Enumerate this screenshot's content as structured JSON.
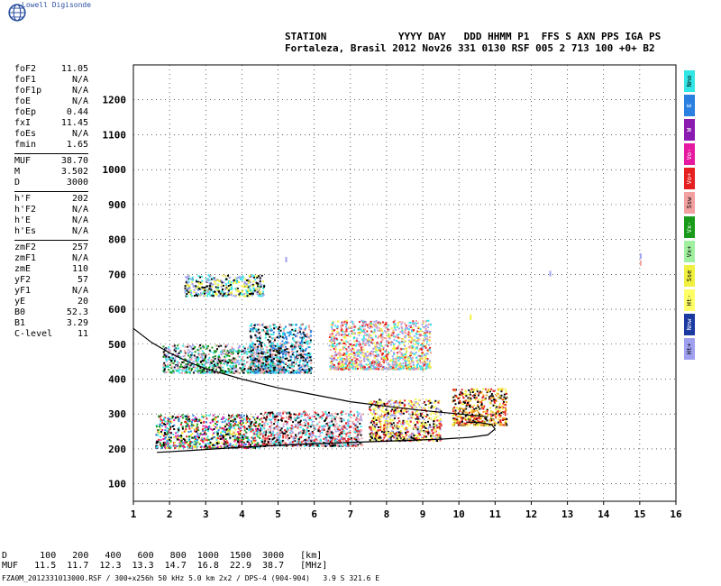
{
  "app": {
    "logo_text": "Lowell Digisonde",
    "logo_icon": "globe-icon"
  },
  "header": {
    "line1": "STATION            YYYY DAY   DDD HHMM P1  FFS S AXN PPS IGA PS",
    "line2": "Fortaleza, Brasil 2012 Nov26 331 0130 RSF 005 2 713 100 +0+ B2"
  },
  "params": [
    [
      {
        "name": "foF2",
        "value": "11.05"
      },
      {
        "name": "foF1",
        "value": "N/A"
      },
      {
        "name": "foF1p",
        "value": "N/A"
      },
      {
        "name": "foE",
        "value": "N/A"
      },
      {
        "name": "foEp",
        "value": "0.44"
      },
      {
        "name": "fxI",
        "value": "11.45"
      },
      {
        "name": "foEs",
        "value": "N/A"
      },
      {
        "name": "fmin",
        "value": "1.65"
      }
    ],
    [
      {
        "name": "MUF",
        "value": "38.70"
      },
      {
        "name": "M",
        "value": "3.502"
      },
      {
        "name": "D",
        "value": "3000"
      }
    ],
    [
      {
        "name": "h'F",
        "value": "202"
      },
      {
        "name": "h'F2",
        "value": "N/A"
      },
      {
        "name": "h'E",
        "value": "N/A"
      },
      {
        "name": "h'Es",
        "value": "N/A"
      }
    ],
    [
      {
        "name": "zmF2",
        "value": "257"
      },
      {
        "name": "zmF1",
        "value": "N/A"
      },
      {
        "name": "zmE",
        "value": "110"
      },
      {
        "name": "yF2",
        "value": "57"
      },
      {
        "name": "yF1",
        "value": "N/A"
      },
      {
        "name": "yE",
        "value": "20"
      },
      {
        "name": "B0",
        "value": "52.3"
      },
      {
        "name": "B1",
        "value": "3.29"
      },
      {
        "name": "C-level",
        "value": "11"
      }
    ]
  ],
  "legend": [
    {
      "label": "Nno",
      "color": "#33e6e6"
    },
    {
      "label": "E",
      "color": "#2a7fe0"
    },
    {
      "label": "W",
      "color": "#8a1ab0"
    },
    {
      "label": "Vo-",
      "color": "#e61aa0"
    },
    {
      "label": "Vo+",
      "color": "#e62020"
    },
    {
      "label": "Ssw",
      "color": "#f2a0a0"
    },
    {
      "label": "Vx-",
      "color": "#1a9a1a"
    },
    {
      "label": "Vx+",
      "color": "#a0f0a0"
    },
    {
      "label": "Sse",
      "color": "#f0f040"
    },
    {
      "label": "Ht-",
      "color": "#ffff66"
    },
    {
      "label": "Nnw",
      "color": "#1a3aa0"
    },
    {
      "label": "Ht+",
      "color": "#a0a0f0"
    }
  ],
  "chart_data": {
    "type": "scatter",
    "title": "",
    "xlabel": "",
    "ylabel": "",
    "xlim": [
      1,
      16
    ],
    "ylim": [
      50,
      1300
    ],
    "x_ticks": [
      1,
      2,
      3,
      4,
      5,
      6,
      7,
      8,
      9,
      10,
      11,
      12,
      13,
      14,
      15,
      16
    ],
    "y_ticks": [
      100,
      200,
      300,
      400,
      500,
      600,
      700,
      800,
      900,
      1000,
      1100,
      1200
    ],
    "grid": "dotted",
    "echo_clusters": [
      {
        "name": "F-trace",
        "x": [
          1.6,
          4.5
        ],
        "y": [
          205,
          300
        ],
        "colors": [
          "#e62020",
          "#2a7fe0",
          "#33e6e6",
          "#000000",
          "#e61aa0",
          "#1a9a1a",
          "#f0f040"
        ]
      },
      {
        "name": "F-trace-mid",
        "x": [
          4.5,
          7.3
        ],
        "y": [
          210,
          310
        ],
        "colors": [
          "#e62020",
          "#33e6e6",
          "#000000",
          "#a0a0f0",
          "#f2a0a0"
        ]
      },
      {
        "name": "F-trace-high",
        "x": [
          7.5,
          9.5
        ],
        "y": [
          225,
          345
        ],
        "colors": [
          "#f0f040",
          "#e62020",
          "#000000",
          "#ffff66",
          "#a0a0f0"
        ]
      },
      {
        "name": "F-trace-top",
        "x": [
          9.8,
          11.3
        ],
        "y": [
          270,
          375
        ],
        "colors": [
          "#e62020",
          "#f0a020",
          "#f0f040",
          "#000000"
        ]
      },
      {
        "name": "F2-multi-hop",
        "x": [
          1.8,
          5.1
        ],
        "y": [
          420,
          500
        ],
        "colors": [
          "#000000",
          "#33e6e6",
          "#f2a0a0",
          "#a0a0f0",
          "#1a9a1a"
        ]
      },
      {
        "name": "F2-multi-hop-b",
        "x": [
          4.2,
          5.9
        ],
        "y": [
          420,
          560
        ],
        "colors": [
          "#33e6e6",
          "#f2a0a0",
          "#000000",
          "#2a7fe0"
        ]
      },
      {
        "name": "F2-multi-hop-c",
        "x": [
          6.4,
          9.2
        ],
        "y": [
          430,
          570
        ],
        "colors": [
          "#a0a0f0",
          "#f2a0a0",
          "#f0f040",
          "#e62020",
          "#33e6e6"
        ]
      },
      {
        "name": "third-hop",
        "x": [
          2.4,
          4.6
        ],
        "y": [
          640,
          700
        ],
        "colors": [
          "#000000",
          "#f0f040",
          "#a0a0f0",
          "#33e6e6"
        ]
      }
    ],
    "ordinary_curve": {
      "x": [
        1.65,
        2.5,
        4,
        6,
        8,
        9.5,
        10.3,
        10.8,
        11.0,
        10.9,
        10.6,
        10.2
      ],
      "y": [
        190,
        195,
        205,
        215,
        222,
        228,
        233,
        240,
        257,
        270,
        275,
        277
      ]
    },
    "profile_curve": {
      "x": [
        1,
        1.5,
        2,
        2.5,
        3,
        4,
        5,
        6,
        7,
        8,
        9,
        10,
        10.8
      ],
      "y": [
        545,
        505,
        475,
        450,
        430,
        400,
        375,
        355,
        335,
        322,
        310,
        300,
        292
      ]
    }
  },
  "muf_table": {
    "d_label": "D",
    "muf_label": "MUF",
    "d_values": [
      "100",
      "200",
      "400",
      "600",
      "800",
      "1000",
      "1500",
      "3000"
    ],
    "muf_values": [
      "11.5",
      "11.7",
      "12.3",
      "13.3",
      "14.7",
      "16.8",
      "22.9",
      "38.7"
    ],
    "d_unit": "[km]",
    "muf_unit": "[MHz]"
  },
  "footer": "FZA0M_2012331013000.RSF / 300+x256h 50 kHz 5.0 km 2x2 / DPS-4 (904-904)   3.9 S 321.6 E"
}
